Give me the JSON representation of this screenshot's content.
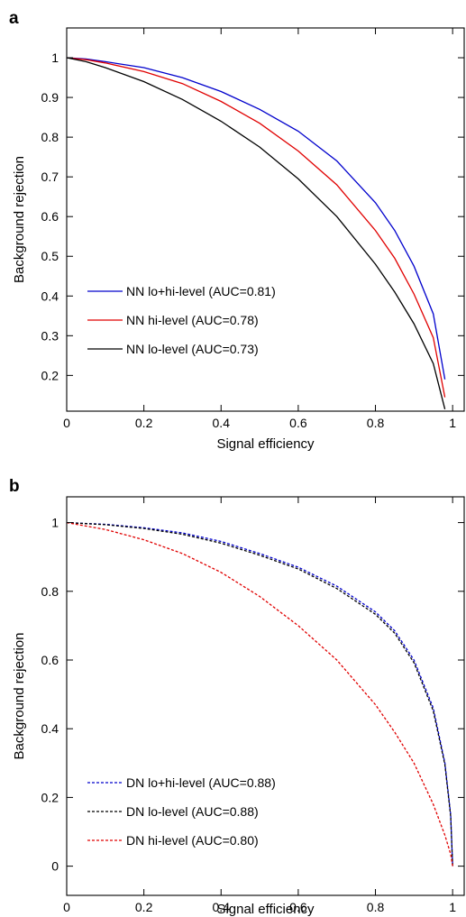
{
  "chart_data": [
    {
      "panel_label": "a",
      "type": "line",
      "xlabel": "Signal efficiency",
      "ylabel": "Background rejection",
      "xlim": [
        0,
        1.03
      ],
      "ylim": [
        0.11,
        1.075
      ],
      "xticks": [
        0,
        0.2,
        0.4,
        0.6,
        0.8,
        1
      ],
      "xtick_labels": [
        "0",
        "0.2",
        "0.4",
        "0.6",
        "0.8",
        "1"
      ],
      "yticks": [
        0.2,
        0.3,
        0.4,
        0.5,
        0.6,
        0.7,
        0.8,
        0.9,
        1
      ],
      "ytick_labels": [
        "0.2",
        "0.3",
        "0.4",
        "0.5",
        "0.6",
        "0.7",
        "0.8",
        "0.9",
        "1"
      ],
      "grid": false,
      "legend_position": "bottom-left",
      "series": [
        {
          "name": "NN lo+hi-level (AUC=0.81)",
          "color": "#0000cc",
          "dash": "solid",
          "x": [
            0,
            0.05,
            0.1,
            0.2,
            0.3,
            0.4,
            0.5,
            0.6,
            0.7,
            0.8,
            0.85,
            0.9,
            0.95,
            0.98
          ],
          "y": [
            1.0,
            0.997,
            0.99,
            0.975,
            0.95,
            0.915,
            0.87,
            0.815,
            0.74,
            0.635,
            0.565,
            0.475,
            0.355,
            0.19
          ]
        },
        {
          "name": "NN hi-level (AUC=0.78)",
          "color": "#e00000",
          "dash": "solid",
          "x": [
            0,
            0.05,
            0.1,
            0.2,
            0.3,
            0.4,
            0.5,
            0.6,
            0.7,
            0.8,
            0.85,
            0.9,
            0.95,
            0.98
          ],
          "y": [
            1.0,
            0.995,
            0.987,
            0.965,
            0.935,
            0.89,
            0.835,
            0.765,
            0.68,
            0.565,
            0.495,
            0.405,
            0.295,
            0.145
          ]
        },
        {
          "name": "NN lo-level (AUC=0.73)",
          "color": "#000000",
          "dash": "solid",
          "x": [
            0,
            0.05,
            0.1,
            0.2,
            0.3,
            0.4,
            0.5,
            0.6,
            0.7,
            0.8,
            0.85,
            0.9,
            0.95,
            0.98
          ],
          "y": [
            1.0,
            0.99,
            0.975,
            0.94,
            0.895,
            0.84,
            0.775,
            0.695,
            0.6,
            0.48,
            0.41,
            0.33,
            0.23,
            0.115
          ]
        }
      ]
    },
    {
      "panel_label": "b",
      "type": "line",
      "xlabel": "Signal efficiency",
      "ylabel": "Background rejection",
      "xlim": [
        0,
        1.03
      ],
      "ylim": [
        -0.085,
        1.075
      ],
      "xticks": [
        0,
        0.2,
        0.4,
        0.6,
        0.8,
        1
      ],
      "xtick_labels": [
        "0",
        "0.2",
        "0.4",
        "0.6",
        "0.8",
        "1"
      ],
      "yticks": [
        0,
        0.2,
        0.4,
        0.6,
        0.8,
        1
      ],
      "ytick_labels": [
        "0",
        "0.2",
        "0.4",
        "0.6",
        "0.8",
        "1"
      ],
      "grid": false,
      "legend_position": "bottom-left",
      "series": [
        {
          "name": "DN lo+hi-level (AUC=0.88)",
          "color": "#0000cc",
          "dash": "dashed",
          "x": [
            0,
            0.1,
            0.2,
            0.3,
            0.4,
            0.5,
            0.6,
            0.7,
            0.8,
            0.85,
            0.9,
            0.95,
            0.98,
            0.995,
            1.0
          ],
          "y": [
            1.0,
            0.995,
            0.985,
            0.97,
            0.945,
            0.91,
            0.87,
            0.815,
            0.74,
            0.685,
            0.6,
            0.46,
            0.3,
            0.15,
            0.0
          ]
        },
        {
          "name": "DN lo-level (AUC=0.88)",
          "color": "#000000",
          "dash": "dashed",
          "x": [
            0,
            0.1,
            0.2,
            0.3,
            0.4,
            0.5,
            0.6,
            0.7,
            0.8,
            0.85,
            0.9,
            0.95,
            0.98,
            0.995,
            1.0
          ],
          "y": [
            1.0,
            0.994,
            0.983,
            0.966,
            0.94,
            0.905,
            0.865,
            0.808,
            0.733,
            0.678,
            0.592,
            0.452,
            0.295,
            0.145,
            0.0
          ]
        },
        {
          "name": "DN hi-level (AUC=0.80)",
          "color": "#e00000",
          "dash": "dashed",
          "x": [
            0,
            0.1,
            0.2,
            0.3,
            0.4,
            0.5,
            0.6,
            0.7,
            0.8,
            0.85,
            0.9,
            0.95,
            0.98,
            0.995,
            1.0
          ],
          "y": [
            1.0,
            0.98,
            0.95,
            0.91,
            0.855,
            0.785,
            0.7,
            0.6,
            0.47,
            0.39,
            0.3,
            0.18,
            0.09,
            0.035,
            0.0
          ]
        }
      ]
    }
  ]
}
